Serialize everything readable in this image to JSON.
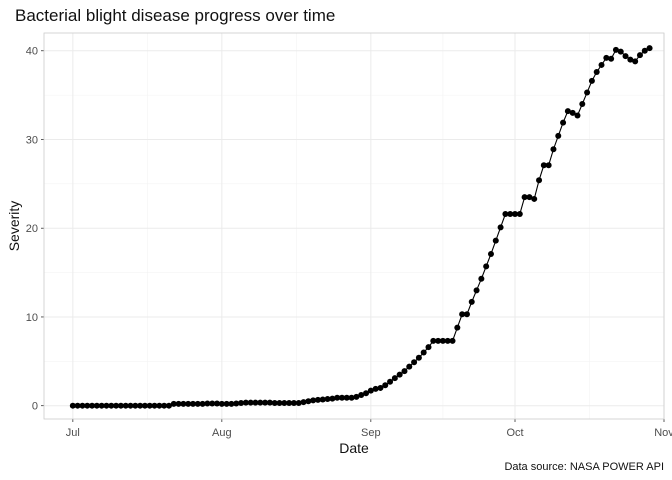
{
  "chart_data": {
    "type": "line",
    "title": "Bacterial blight disease progress over time",
    "xlabel": "Date",
    "ylabel": "Severity",
    "caption": "Data source: NASA POWER API",
    "x_start": "2023-07-01",
    "x_end": "2023-10-28",
    "xlim": [
      "2023-06-25",
      "2023-11-01"
    ],
    "ylim": [
      -1.5,
      42
    ],
    "x_ticks": [
      {
        "date": "2023-07-01",
        "label": "Jul"
      },
      {
        "date": "2023-08-01",
        "label": "Aug"
      },
      {
        "date": "2023-09-01",
        "label": "Sep"
      },
      {
        "date": "2023-10-01",
        "label": "Oct"
      },
      {
        "date": "2023-11-01",
        "label": "Nov"
      }
    ],
    "y_ticks": [
      0,
      10,
      20,
      30,
      40
    ],
    "grid": true,
    "series": [
      {
        "color": "#000000",
        "values": [
          0,
          0,
          0,
          0,
          0,
          0,
          0,
          0,
          0,
          0,
          0,
          0,
          0,
          0,
          0,
          0,
          0,
          0,
          0,
          0,
          0,
          0.2,
          0.2,
          0.2,
          0.2,
          0.2,
          0.2,
          0.2,
          0.25,
          0.25,
          0.25,
          0.2,
          0.2,
          0.2,
          0.25,
          0.3,
          0.35,
          0.35,
          0.35,
          0.35,
          0.35,
          0.35,
          0.3,
          0.3,
          0.3,
          0.3,
          0.3,
          0.3,
          0.4,
          0.5,
          0.6,
          0.65,
          0.7,
          0.75,
          0.8,
          0.9,
          0.9,
          0.9,
          0.9,
          1.0,
          1.2,
          1.4,
          1.7,
          1.9,
          2.0,
          2.3,
          2.7,
          3.1,
          3.5,
          3.9,
          4.4,
          4.9,
          5.4,
          6.0,
          6.6,
          7.3,
          7.3,
          7.3,
          7.3,
          7.3,
          8.8,
          10.3,
          10.3,
          11.7,
          13.0,
          14.3,
          15.7,
          17.1,
          18.6,
          20.1,
          21.6,
          21.6,
          21.6,
          21.6,
          23.5,
          23.5,
          23.3,
          25.4,
          27.1,
          27.1,
          28.9,
          30.4,
          31.9,
          33.2,
          33.0,
          32.7,
          34.0,
          35.3,
          36.6,
          37.6,
          38.4,
          39.2,
          39.1,
          40.1,
          39.9,
          39.4,
          39.0,
          38.8,
          39.5,
          40.0,
          40.3
        ]
      }
    ]
  }
}
